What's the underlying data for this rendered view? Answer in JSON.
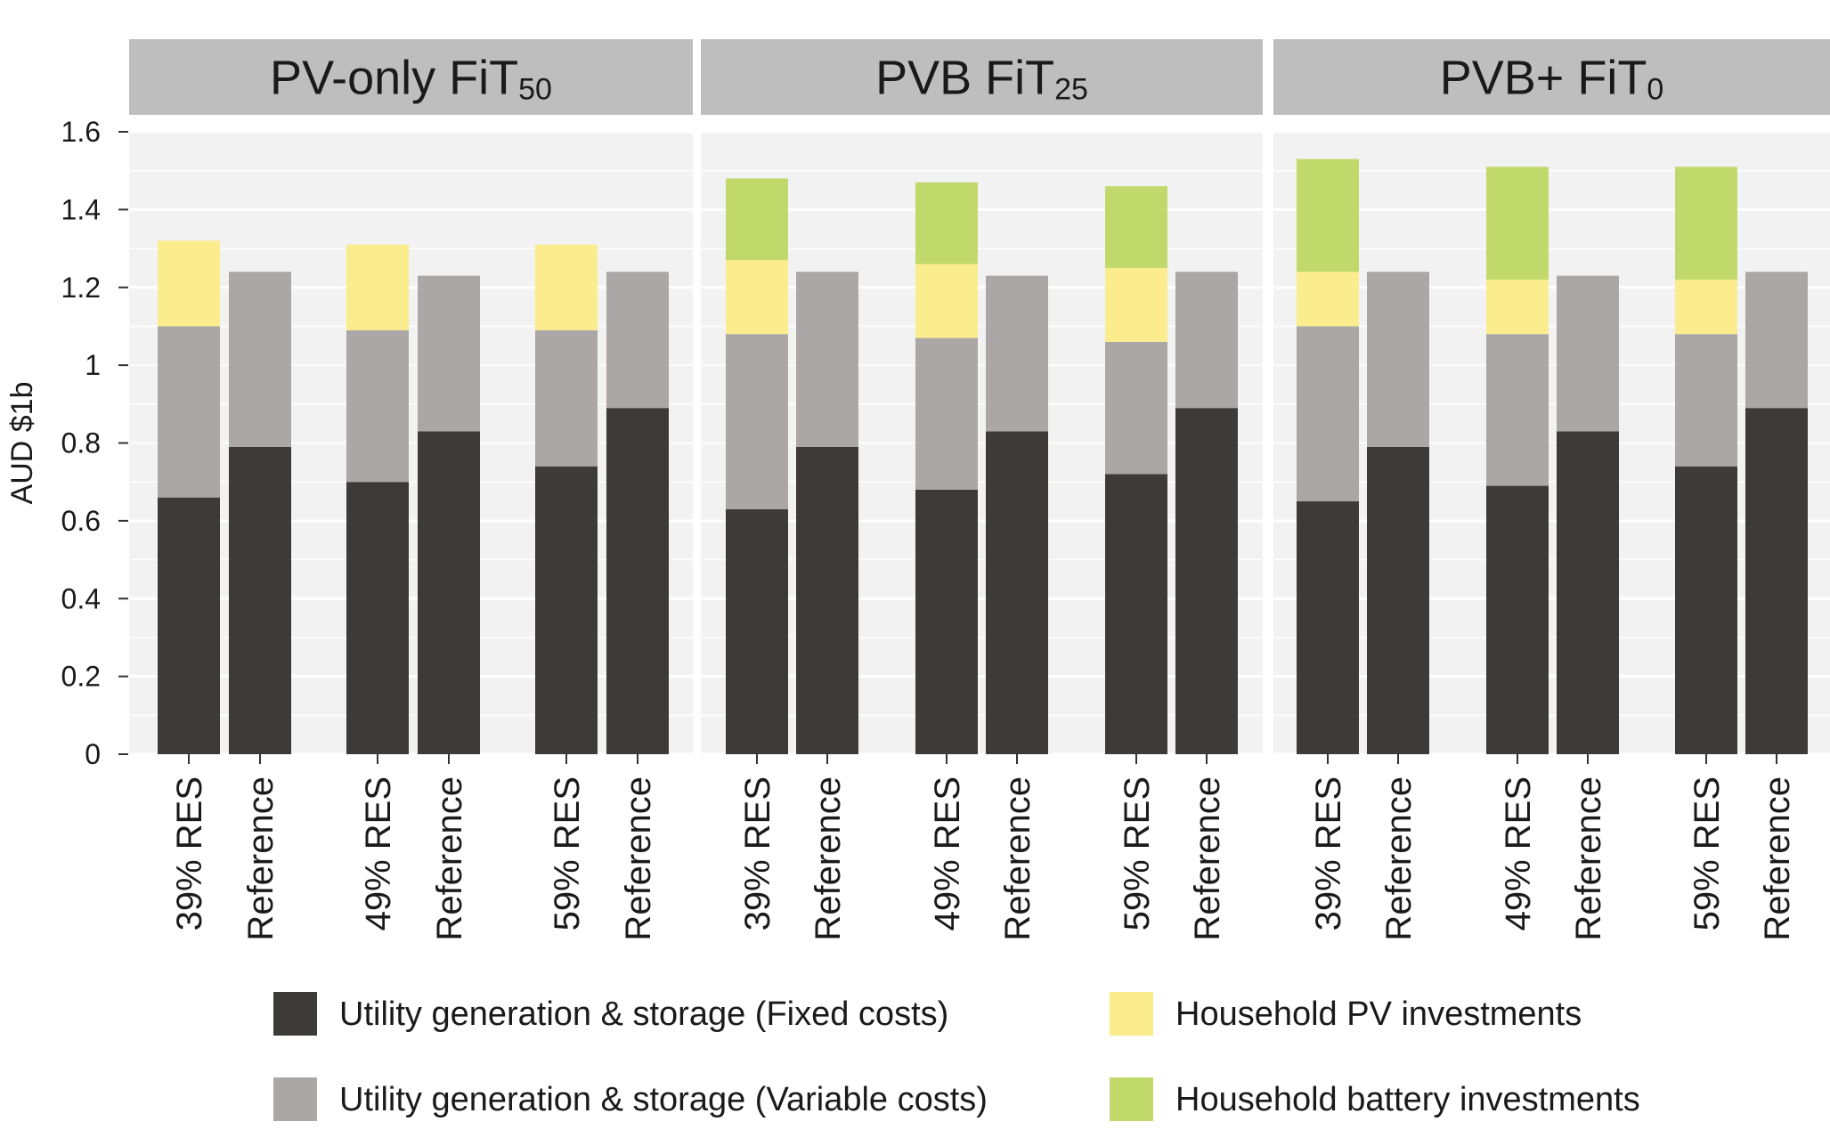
{
  "chart_data": {
    "type": "bar",
    "stacked": true,
    "ylabel": "AUD $1b",
    "ylim": [
      0,
      1.6
    ],
    "yticks": [
      "0",
      "0.2",
      "0.4",
      "0.6",
      "0.8",
      "1",
      "1.2",
      "1.4",
      "1.6"
    ],
    "ytick_values": [
      0,
      0.2,
      0.4,
      0.6,
      0.8,
      1,
      1.2,
      1.4,
      1.6
    ],
    "grid": true,
    "legend_position": "bottom",
    "series_order": [
      "fixed",
      "variable",
      "pv",
      "battery"
    ],
    "series_info": [
      {
        "key": "fixed",
        "name": "Utility generation & storage (Fixed costs)",
        "color": "#3c3b39"
      },
      {
        "key": "variable",
        "name": "Utility generation & storage (Variable costs)",
        "color": "#aba7a6"
      },
      {
        "key": "pv",
        "name": "Household PV investments",
        "color": "#fbec8e"
      },
      {
        "key": "battery",
        "name": "Household battery investments",
        "color": "#c1d96b"
      }
    ],
    "facets": [
      {
        "title": "PV-only FiT",
        "title_sub": "50",
        "bars": [
          {
            "label": "39% RES",
            "fixed": 0.66,
            "variable": 0.44,
            "pv": 0.22,
            "battery": 0
          },
          {
            "label": "Reference",
            "fixed": 0.79,
            "variable": 0.45,
            "pv": 0,
            "battery": 0
          },
          {
            "label": "49% RES",
            "fixed": 0.7,
            "variable": 0.39,
            "pv": 0.22,
            "battery": 0
          },
          {
            "label": "Reference",
            "fixed": 0.83,
            "variable": 0.4,
            "pv": 0,
            "battery": 0
          },
          {
            "label": "59% RES",
            "fixed": 0.74,
            "variable": 0.35,
            "pv": 0.22,
            "battery": 0
          },
          {
            "label": "Reference",
            "fixed": 0.89,
            "variable": 0.35,
            "pv": 0,
            "battery": 0
          }
        ]
      },
      {
        "title": "PVB FiT",
        "title_sub": "25",
        "bars": [
          {
            "label": "39% RES",
            "fixed": 0.63,
            "variable": 0.45,
            "pv": 0.19,
            "battery": 0.21
          },
          {
            "label": "Reference",
            "fixed": 0.79,
            "variable": 0.45,
            "pv": 0,
            "battery": 0
          },
          {
            "label": "49% RES",
            "fixed": 0.68,
            "variable": 0.39,
            "pv": 0.19,
            "battery": 0.21
          },
          {
            "label": "Reference",
            "fixed": 0.83,
            "variable": 0.4,
            "pv": 0,
            "battery": 0
          },
          {
            "label": "59% RES",
            "fixed": 0.72,
            "variable": 0.34,
            "pv": 0.19,
            "battery": 0.21
          },
          {
            "label": "Reference",
            "fixed": 0.89,
            "variable": 0.35,
            "pv": 0,
            "battery": 0
          }
        ]
      },
      {
        "title": "PVB+ FiT",
        "title_sub": "0",
        "bars": [
          {
            "label": "39% RES",
            "fixed": 0.65,
            "variable": 0.45,
            "pv": 0.14,
            "battery": 0.29
          },
          {
            "label": "Reference",
            "fixed": 0.79,
            "variable": 0.45,
            "pv": 0,
            "battery": 0
          },
          {
            "label": "49% RES",
            "fixed": 0.69,
            "variable": 0.39,
            "pv": 0.14,
            "battery": 0.29
          },
          {
            "label": "Reference",
            "fixed": 0.83,
            "variable": 0.4,
            "pv": 0,
            "battery": 0
          },
          {
            "label": "59% RES",
            "fixed": 0.74,
            "variable": 0.34,
            "pv": 0.14,
            "battery": 0.29
          },
          {
            "label": "Reference",
            "fixed": 0.89,
            "variable": 0.35,
            "pv": 0,
            "battery": 0
          }
        ]
      }
    ]
  }
}
